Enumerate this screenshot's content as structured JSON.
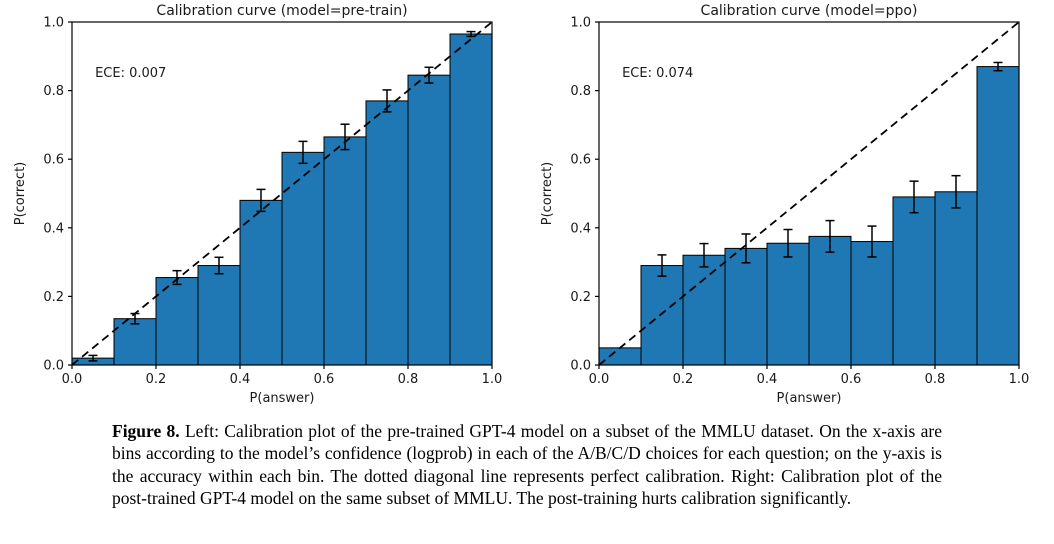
{
  "caption": {
    "label": "Figure 8.",
    "text": "Left: Calibration plot of the pre-trained GPT-4 model on a subset of the MMLU dataset. On the x-axis are bins according to the model’s confidence (logprob) in each of the A/B/C/D choices for each question; on the y-axis is the accuracy within each bin. The dotted diagonal line represents perfect calibration. Right: Calibration plot of the post-trained GPT-4 model on the same subset of MMLU. The post-training hurts calibration significantly."
  },
  "colors": {
    "bar_fill": "#1f77b4",
    "bar_edge": "#000000",
    "diagonal": "#000000",
    "axis": "#000000",
    "text": "#1a1a1a"
  },
  "chart_data": [
    {
      "type": "bar",
      "title": "Calibration curve (model=pre-train)",
      "annotation": "ECE: 0.007",
      "xlabel": "P(answer)",
      "ylabel": "P(correct)",
      "xlim": [
        0.0,
        1.0
      ],
      "ylim": [
        0.0,
        1.0
      ],
      "xticks": [
        0.0,
        0.2,
        0.4,
        0.6,
        0.8,
        1.0
      ],
      "yticks": [
        0.0,
        0.2,
        0.4,
        0.6,
        0.8,
        1.0
      ],
      "grid": false,
      "bin_edges": [
        0.0,
        0.1,
        0.2,
        0.3,
        0.4,
        0.5,
        0.6,
        0.7,
        0.8,
        0.9,
        1.0
      ],
      "values": [
        0.02,
        0.135,
        0.255,
        0.29,
        0.48,
        0.62,
        0.665,
        0.77,
        0.845,
        0.965
      ],
      "errors": [
        0.008,
        0.015,
        0.02,
        0.024,
        0.032,
        0.032,
        0.037,
        0.032,
        0.023,
        0.007
      ],
      "diagonal": {
        "style": "dashed",
        "from": [
          0,
          0
        ],
        "to": [
          1,
          1
        ],
        "meaning": "perfect calibration"
      }
    },
    {
      "type": "bar",
      "title": "Calibration curve (model=ppo)",
      "annotation": "ECE: 0.074",
      "xlabel": "P(answer)",
      "ylabel": "P(correct)",
      "xlim": [
        0.0,
        1.0
      ],
      "ylim": [
        0.0,
        1.0
      ],
      "xticks": [
        0.0,
        0.2,
        0.4,
        0.6,
        0.8,
        1.0
      ],
      "yticks": [
        0.0,
        0.2,
        0.4,
        0.6,
        0.8,
        1.0
      ],
      "grid": false,
      "bin_edges": [
        0.0,
        0.1,
        0.2,
        0.3,
        0.4,
        0.5,
        0.6,
        0.7,
        0.8,
        0.9,
        1.0
      ],
      "values": [
        0.05,
        0.29,
        0.32,
        0.34,
        0.355,
        0.375,
        0.36,
        0.49,
        0.505,
        0.87
      ],
      "errors": [
        0,
        0.031,
        0.034,
        0.042,
        0.04,
        0.046,
        0.045,
        0.046,
        0.047,
        0.012
      ],
      "diagonal": {
        "style": "dashed",
        "from": [
          0,
          0
        ],
        "to": [
          1,
          1
        ],
        "meaning": "perfect calibration"
      }
    }
  ]
}
